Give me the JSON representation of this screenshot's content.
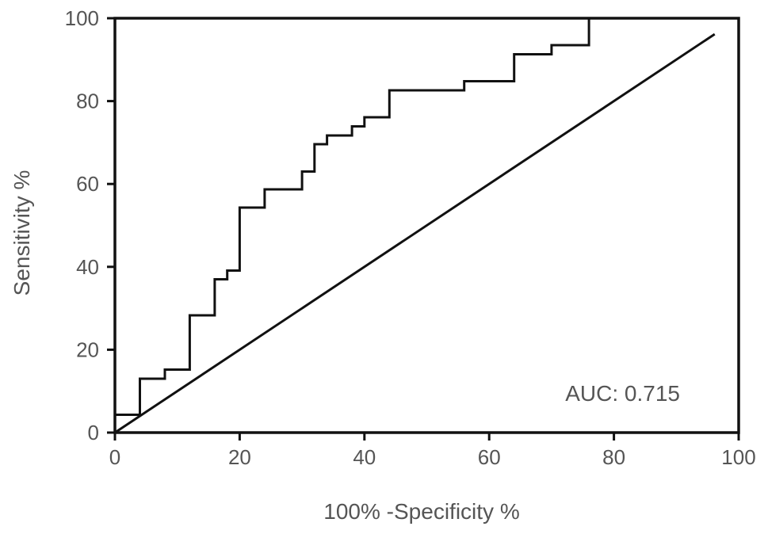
{
  "chart_data": {
    "type": "line",
    "xlabel": "100% -Specificity %",
    "ylabel": "Sensitivity %",
    "xlim": [
      0,
      100
    ],
    "ylim": [
      0,
      100
    ],
    "x_ticks": [
      0,
      20,
      40,
      60,
      80,
      100
    ],
    "y_ticks": [
      0,
      20,
      40,
      60,
      80,
      100
    ],
    "grid": false,
    "annotation": "AUC: 0.715",
    "series": [
      {
        "kind": "step",
        "x": [
          0,
          0,
          4,
          4,
          8,
          8,
          12,
          12,
          16,
          16,
          18,
          18,
          20,
          20,
          24,
          24,
          30,
          30,
          32,
          32,
          34,
          34,
          38,
          38,
          40,
          40,
          44,
          44,
          56,
          56,
          64,
          64,
          70,
          70,
          76,
          76
        ],
        "y": [
          0,
          4.3,
          4.3,
          13,
          13,
          15.2,
          15.2,
          28.3,
          28.3,
          37,
          37,
          39.1,
          39.1,
          54.3,
          54.3,
          58.7,
          58.7,
          63,
          63,
          69.6,
          69.6,
          71.7,
          71.7,
          73.9,
          73.9,
          76.1,
          76.1,
          82.6,
          82.6,
          84.8,
          84.8,
          91.3,
          91.3,
          93.5,
          93.5,
          100
        ]
      },
      {
        "kind": "reference",
        "x": [
          0,
          96
        ],
        "y": [
          0,
          96
        ]
      }
    ],
    "colors": {
      "line": "#111111",
      "frame": "#111111",
      "text": "#555555"
    }
  }
}
